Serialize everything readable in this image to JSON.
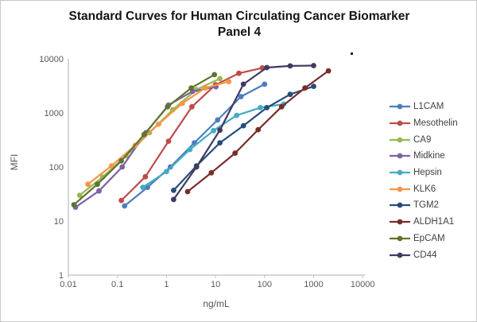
{
  "title": {
    "line1": "Standard Curves for Human Circulating Cancer Biomarker",
    "line2": "Panel 4"
  },
  "axes": {
    "x_label": "ng/mL",
    "y_label": "MFI",
    "x_ticks": [
      "0.01",
      "0.1",
      "1",
      "10",
      "100",
      "1000",
      "10000"
    ],
    "y_ticks": [
      "1",
      "10",
      "100",
      "1000",
      "10000"
    ],
    "axis_line_color": "#BFBFBF",
    "tick_label_color": "#595959"
  },
  "annotations": {
    "stray_dot": "."
  },
  "chart_data": {
    "type": "line",
    "title": "Standard Curves for Human Circulating Cancer Biomarker Panel 4",
    "xlabel": "ng/mL",
    "ylabel": "MFI",
    "xscale": "log",
    "yscale": "log",
    "xlim": [
      0.01,
      10000
    ],
    "ylim": [
      1,
      10000
    ],
    "grid": false,
    "legend_position": "right",
    "marker": "circle",
    "series": [
      {
        "name": "L1CAM",
        "color": "#4A7EBB",
        "x": [
          0.14,
          0.41,
          1.2,
          3.7,
          11,
          33,
          100
        ],
        "y": [
          19,
          42,
          100,
          280,
          740,
          2000,
          3400
        ]
      },
      {
        "name": "Mesothelin",
        "color": "#BE4B48",
        "x": [
          0.12,
          0.37,
          1.1,
          3.3,
          10,
          30,
          90
        ],
        "y": [
          24,
          66,
          300,
          1300,
          3300,
          5400,
          6800
        ]
      },
      {
        "name": "CA9",
        "color": "#98B954",
        "x": [
          0.017,
          0.05,
          0.15,
          0.45,
          1.35,
          4.1,
          12.3
        ],
        "y": [
          30,
          65,
          160,
          430,
          1150,
          2700,
          4300
        ]
      },
      {
        "name": "Midkine",
        "color": "#7E62A1",
        "x": [
          0.014,
          0.042,
          0.125,
          0.38,
          1.1,
          3.4,
          10.2
        ],
        "y": [
          18,
          36,
          100,
          430,
          1400,
          2500,
          3050
        ]
      },
      {
        "name": "Hepsin",
        "color": "#45AAC4",
        "x": [
          0.33,
          1.0,
          3.0,
          9.1,
          27,
          82,
          245
        ],
        "y": [
          42,
          82,
          210,
          470,
          900,
          1250,
          1450
        ]
      },
      {
        "name": "KLK6",
        "color": "#F79546",
        "x": [
          0.025,
          0.076,
          0.23,
          0.69,
          2.1,
          6.2,
          18.6
        ],
        "y": [
          48,
          105,
          250,
          620,
          1500,
          2900,
          3800
        ]
      },
      {
        "name": "TGM2",
        "color": "#264D79",
        "x": [
          1.4,
          4.1,
          12.3,
          37,
          111,
          333,
          1000
        ],
        "y": [
          37,
          105,
          280,
          580,
          1250,
          2200,
          3100
        ]
      },
      {
        "name": "ALDH1A1",
        "color": "#772C2A",
        "x": [
          2.7,
          8.2,
          25,
          74,
          222,
          667,
          2000
        ],
        "y": [
          35,
          78,
          180,
          490,
          1300,
          2900,
          6000
        ]
      },
      {
        "name": "EpCAM",
        "color": "#5F7530",
        "x": [
          0.013,
          0.039,
          0.12,
          0.35,
          1.05,
          3.2,
          9.5
        ],
        "y": [
          20,
          48,
          130,
          400,
          1300,
          2900,
          5100
        ]
      },
      {
        "name": "CD44",
        "color": "#403A60",
        "x": [
          1.4,
          4.1,
          12.3,
          37,
          111,
          333,
          1000
        ],
        "y": [
          25,
          100,
          480,
          3400,
          6900,
          7400,
          7500
        ]
      }
    ]
  }
}
